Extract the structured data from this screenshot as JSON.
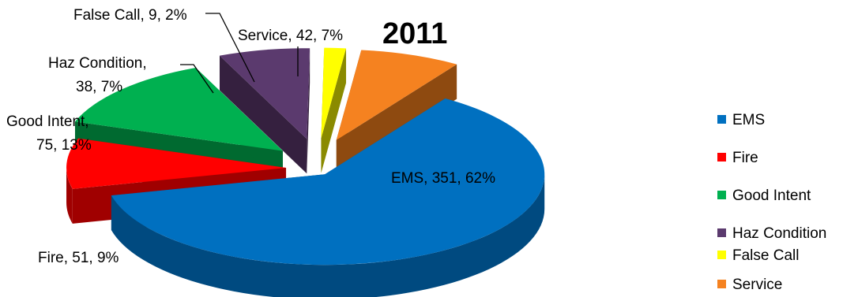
{
  "chart_data": {
    "type": "pie",
    "title": "2011",
    "legend_position": "right",
    "slices": [
      {
        "name": "EMS",
        "value": 351,
        "percent": "62%",
        "label": "EMS, 351, 62%",
        "color": "#0070C0",
        "side_color": "#004A80"
      },
      {
        "name": "Fire",
        "value": 51,
        "percent": "9%",
        "label": "Fire, 51, 9%",
        "color": "#FF0000",
        "side_color": "#A00000"
      },
      {
        "name": "Good Intent",
        "value": 75,
        "percent": "13%",
        "label_lines": [
          "Good Intent,",
          "75, 13%"
        ],
        "color": "#00B050",
        "side_color": "#006A30"
      },
      {
        "name": "Haz Condition",
        "value": 38,
        "percent": "7%",
        "label_lines": [
          "Haz Condition,",
          "38, 7%"
        ],
        "color": "#5B3A6E",
        "side_color": "#35203F"
      },
      {
        "name": "False Call",
        "value": 9,
        "percent": "2%",
        "label": "False Call, 9, 2%",
        "color": "#FFFF00",
        "side_color": "#8A8A00"
      },
      {
        "name": "Service",
        "value": 42,
        "percent": "7%",
        "label": "Service, 42, 7%",
        "color": "#F58220",
        "side_color": "#8E4A10"
      }
    ]
  }
}
